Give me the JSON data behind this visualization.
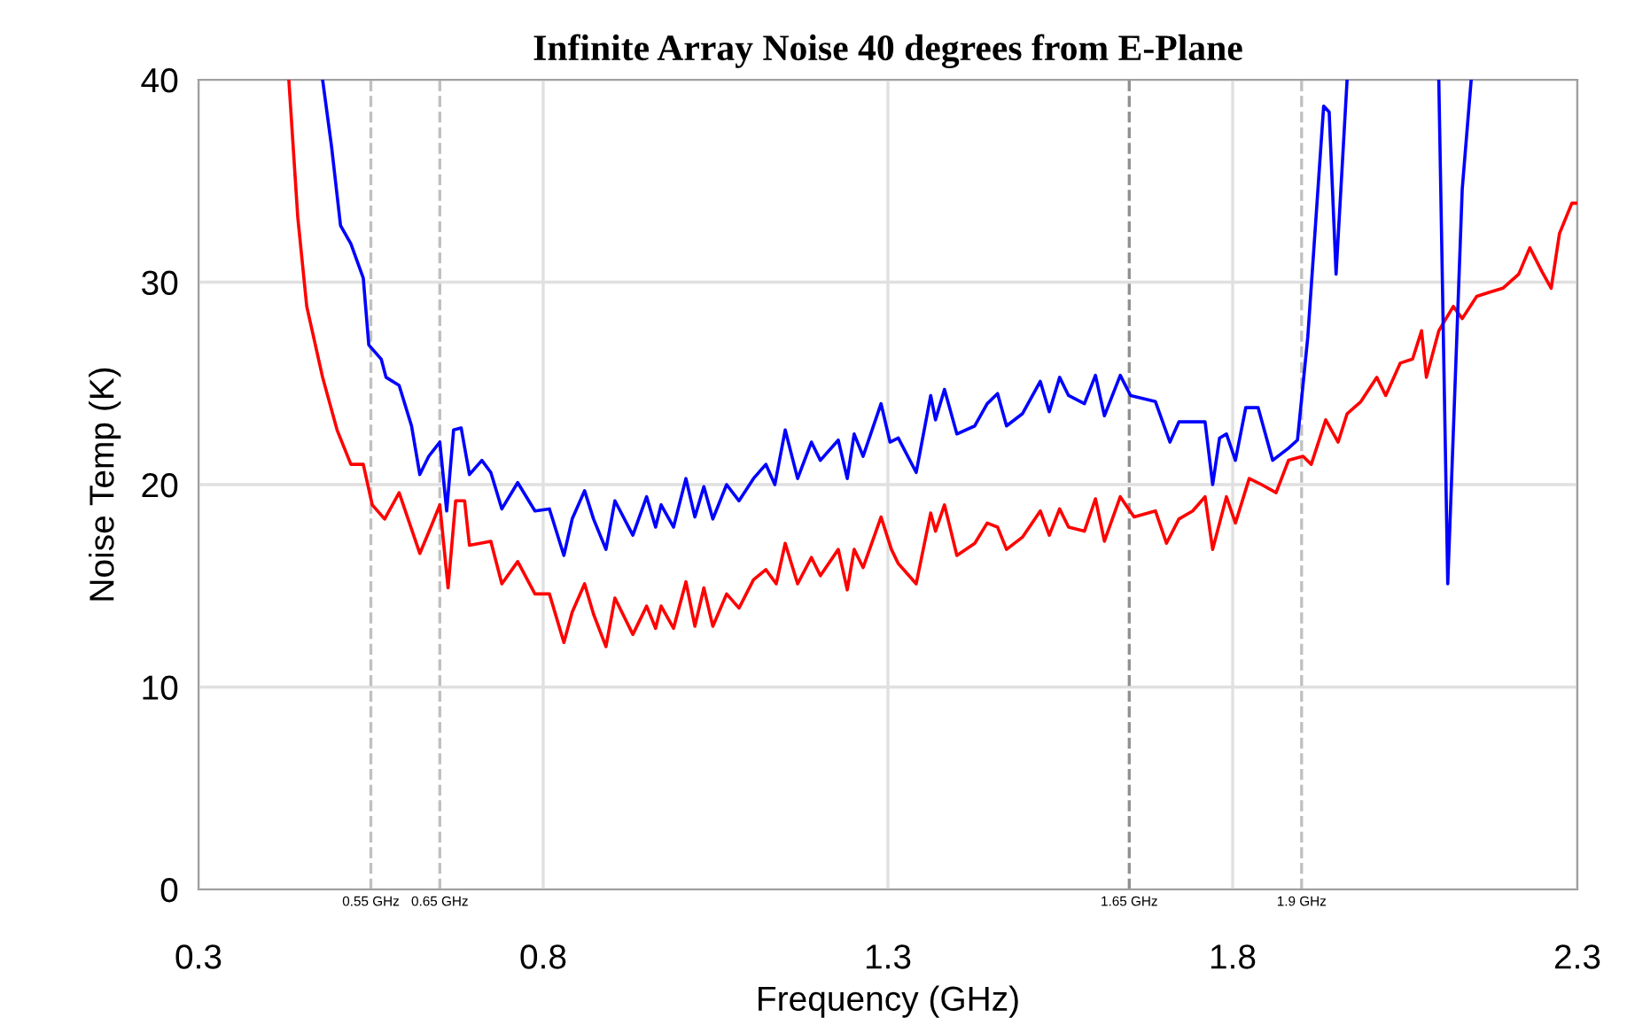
{
  "chart_data": {
    "type": "line",
    "title": "Infinite Array Noise 40 degrees from E-Plane",
    "xlabel": "Frequency (GHz)",
    "ylabel": "Noise Temp (K)",
    "xlim": [
      0.3,
      2.3
    ],
    "ylim": [
      0,
      40
    ],
    "xticks": [
      0.3,
      0.8,
      1.3,
      1.8,
      2.3
    ],
    "yticks": [
      0,
      10,
      20,
      30,
      40
    ],
    "grid": true,
    "legend": false,
    "marker": "none",
    "line_style": "solid",
    "ref_lines": [
      {
        "axis": "x",
        "value": 0.55,
        "label": "0.55 GHz",
        "color": "#c0c0c0",
        "line_style": "dashed"
      },
      {
        "axis": "x",
        "value": 0.65,
        "label": "0.65 GHz",
        "color": "#c0c0c0",
        "line_style": "dashed"
      },
      {
        "axis": "x",
        "value": 1.65,
        "label": "1.65 GHz",
        "color": "#909090",
        "line_style": "dashed"
      },
      {
        "axis": "x",
        "value": 1.9,
        "label": "1.9 GHz",
        "color": "#c0c0c0",
        "line_style": "dashed"
      }
    ],
    "series": [
      {
        "color": "#ff0000",
        "x": [
          0.431,
          0.444,
          0.457,
          0.48,
          0.501,
          0.521,
          0.539,
          0.552,
          0.57,
          0.591,
          0.621,
          0.637,
          0.65,
          0.662,
          0.673,
          0.686,
          0.693,
          0.724,
          0.74,
          0.763,
          0.788,
          0.809,
          0.83,
          0.842,
          0.86,
          0.873,
          0.891,
          0.904,
          0.93,
          0.95,
          0.963,
          0.971,
          0.989,
          1.007,
          1.02,
          1.033,
          1.046,
          1.066,
          1.084,
          1.105,
          1.123,
          1.138,
          1.151,
          1.169,
          1.189,
          1.202,
          1.228,
          1.241,
          1.251,
          1.264,
          1.29,
          1.305,
          1.315,
          1.341,
          1.362,
          1.369,
          1.382,
          1.4,
          1.426,
          1.444,
          1.459,
          1.472,
          1.495,
          1.521,
          1.534,
          1.549,
          1.562,
          1.585,
          1.601,
          1.614,
          1.637,
          1.657,
          1.688,
          1.704,
          1.722,
          1.742,
          1.76,
          1.771,
          1.791,
          1.804,
          1.824,
          1.842,
          1.863,
          1.881,
          1.902,
          1.914,
          1.935,
          1.953,
          1.966,
          1.986,
          2.009,
          2.022,
          2.043,
          2.061,
          2.074,
          2.081,
          2.099,
          2.12,
          2.133,
          2.154,
          2.172,
          2.192,
          2.215,
          2.231,
          2.249,
          2.262,
          2.274,
          2.292,
          2.3
        ],
        "values": [
          40,
          33.2,
          28.8,
          25.3,
          22.7,
          21.0,
          21.0,
          19.0,
          18.3,
          19.6,
          16.6,
          17.9,
          19.0,
          14.9,
          19.2,
          19.2,
          17.0,
          17.2,
          15.1,
          16.2,
          14.6,
          14.6,
          12.2,
          13.7,
          15.1,
          13.6,
          12.0,
          14.4,
          12.6,
          14.0,
          12.9,
          14.0,
          12.9,
          15.2,
          13.0,
          14.9,
          13.0,
          14.6,
          13.9,
          15.3,
          15.8,
          15.1,
          17.1,
          15.1,
          16.4,
          15.5,
          16.8,
          14.8,
          16.8,
          15.9,
          18.4,
          16.8,
          16.1,
          15.1,
          18.6,
          17.7,
          19.0,
          16.5,
          17.1,
          18.1,
          17.9,
          16.8,
          17.4,
          18.7,
          17.5,
          18.8,
          17.9,
          17.7,
          19.3,
          17.2,
          19.4,
          18.4,
          18.7,
          17.1,
          18.3,
          18.7,
          19.4,
          16.8,
          19.4,
          18.1,
          20.3,
          20.0,
          19.6,
          21.2,
          21.4,
          21.0,
          23.2,
          22.1,
          23.5,
          24.1,
          25.3,
          24.4,
          26.0,
          26.2,
          27.6,
          25.3,
          27.6,
          28.8,
          28.2,
          29.3,
          29.5,
          29.7,
          30.4,
          31.7,
          30.5,
          29.7,
          32.4,
          33.9,
          33.9
        ]
      },
      {
        "color": "#0000ff",
        "x": [
          0.48,
          0.493,
          0.506,
          0.521,
          0.539,
          0.547,
          0.565,
          0.572,
          0.591,
          0.609,
          0.621,
          0.634,
          0.65,
          0.66,
          0.67,
          0.681,
          0.693,
          0.711,
          0.724,
          0.74,
          0.763,
          0.788,
          0.809,
          0.83,
          0.842,
          0.86,
          0.873,
          0.891,
          0.904,
          0.93,
          0.95,
          0.963,
          0.971,
          0.989,
          1.007,
          1.02,
          1.033,
          1.046,
          1.066,
          1.084,
          1.105,
          1.123,
          1.136,
          1.151,
          1.169,
          1.189,
          1.202,
          1.228,
          1.241,
          1.251,
          1.264,
          1.29,
          1.303,
          1.315,
          1.341,
          1.362,
          1.369,
          1.382,
          1.4,
          1.426,
          1.444,
          1.459,
          1.472,
          1.495,
          1.521,
          1.534,
          1.549,
          1.562,
          1.585,
          1.601,
          1.614,
          1.637,
          1.652,
          1.688,
          1.709,
          1.722,
          1.742,
          1.76,
          1.771,
          1.781,
          1.791,
          1.804,
          1.819,
          1.837,
          1.858,
          1.881,
          1.894,
          1.909,
          1.932,
          1.94,
          1.95,
          1.966,
          2.03,
          2.099,
          2.112,
          2.133,
          2.146
        ],
        "values": [
          40,
          36.7,
          32.8,
          31.9,
          30.2,
          26.9,
          26.2,
          25.3,
          24.9,
          22.9,
          20.5,
          21.4,
          22.1,
          18.7,
          22.7,
          22.8,
          20.5,
          21.2,
          20.6,
          18.8,
          20.1,
          18.7,
          18.8,
          16.5,
          18.3,
          19.7,
          18.3,
          16.8,
          19.2,
          17.5,
          19.4,
          17.9,
          19.0,
          17.9,
          20.3,
          18.4,
          19.9,
          18.3,
          20.0,
          19.2,
          20.3,
          21.0,
          20.0,
          22.7,
          20.3,
          22.1,
          21.2,
          22.2,
          20.3,
          22.5,
          21.4,
          24.0,
          22.1,
          22.3,
          20.6,
          24.4,
          23.2,
          24.7,
          22.5,
          22.9,
          24.0,
          24.5,
          22.9,
          23.5,
          25.1,
          23.6,
          25.3,
          24.4,
          24.0,
          25.4,
          23.4,
          25.4,
          24.4,
          24.1,
          22.1,
          23.1,
          23.1,
          23.1,
          20.0,
          22.3,
          22.5,
          21.2,
          23.8,
          23.8,
          21.2,
          21.8,
          22.2,
          27.3,
          38.7,
          38.4,
          30.4,
          40,
          null,
          40,
          15.1,
          34.6,
          40
        ]
      }
    ]
  }
}
